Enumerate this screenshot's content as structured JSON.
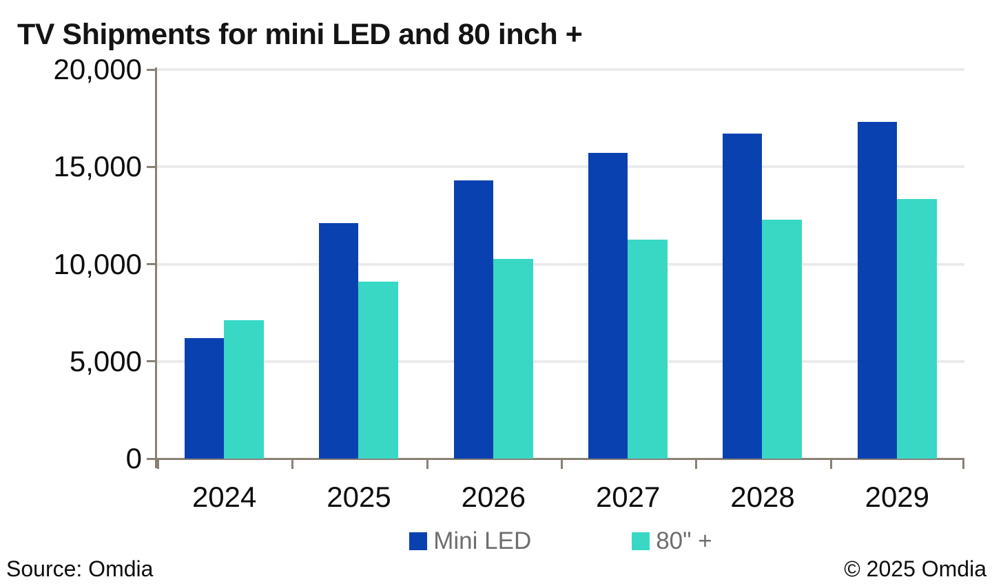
{
  "title": "TV Shipments for mini LED and 80 inch +",
  "colors": {
    "mini_led": "#0a41b0",
    "eighty_plus": "#38d8c5",
    "axis": "#8a8175",
    "gridline": "#ebebeb",
    "legend_text": "#6e6e6e",
    "text": "#0d0d0d"
  },
  "chart_data": {
    "type": "bar",
    "title": "TV Shipments for mini LED and 80 inch +",
    "categories": [
      "2024",
      "2025",
      "2026",
      "2027",
      "2028",
      "2029"
    ],
    "series": [
      {
        "name": "Mini LED",
        "color_key": "mini_led",
        "values": [
          6200,
          12100,
          14300,
          15700,
          16700,
          17300
        ]
      },
      {
        "name": "80\" +",
        "color_key": "eighty_plus",
        "values": [
          7100,
          9100,
          10250,
          11250,
          12300,
          13350
        ]
      }
    ],
    "ylim": [
      0,
      20000
    ],
    "y_ticks": [
      0,
      5000,
      10000,
      15000,
      20000
    ],
    "y_tick_labels": [
      "0",
      "5,000",
      "10,000",
      "15,000",
      "20,000"
    ],
    "grid": "horizontal",
    "legend_position": "bottom"
  },
  "legend": {
    "items": [
      {
        "label": "Mini LED"
      },
      {
        "label": "80\" +"
      }
    ]
  },
  "footer": {
    "source": "Source: Omdia",
    "copyright": "© 2025 Omdia"
  }
}
